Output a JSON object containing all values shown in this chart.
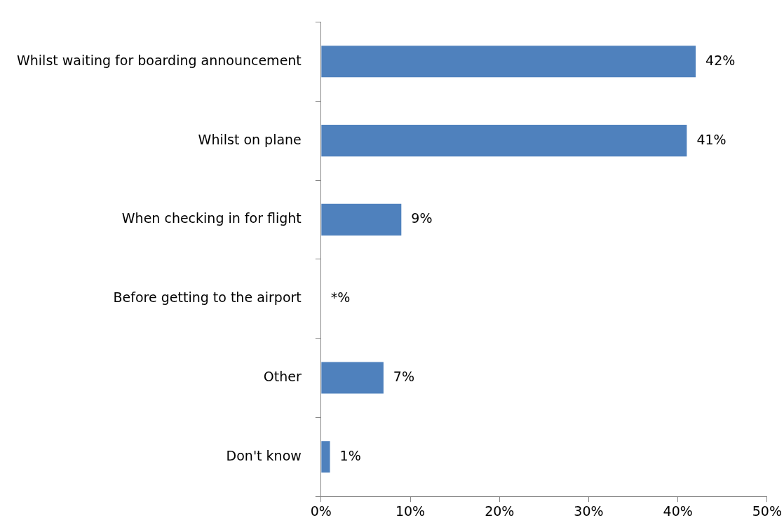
{
  "chart_data": {
    "type": "bar",
    "orientation": "horizontal",
    "categories": [
      "Whilst waiting for boarding announcement",
      "Whilst on plane",
      "When checking in for flight",
      "Before getting to the airport",
      "Other",
      "Don't know"
    ],
    "values": [
      42,
      41,
      9,
      0,
      7,
      1
    ],
    "value_labels": [
      "42%",
      "41%",
      "9%",
      "*%",
      "7%",
      "1%"
    ],
    "color": "#4f81bd",
    "xlim": [
      0,
      50
    ],
    "xticks": [
      {
        "value": 0,
        "label": "0%"
      },
      {
        "value": 10,
        "label": "10%"
      },
      {
        "value": 20,
        "label": "20%"
      },
      {
        "value": 30,
        "label": "30%"
      },
      {
        "value": 40,
        "label": "40%"
      },
      {
        "value": 50,
        "label": "50%"
      }
    ],
    "grid": false,
    "legend": false
  }
}
